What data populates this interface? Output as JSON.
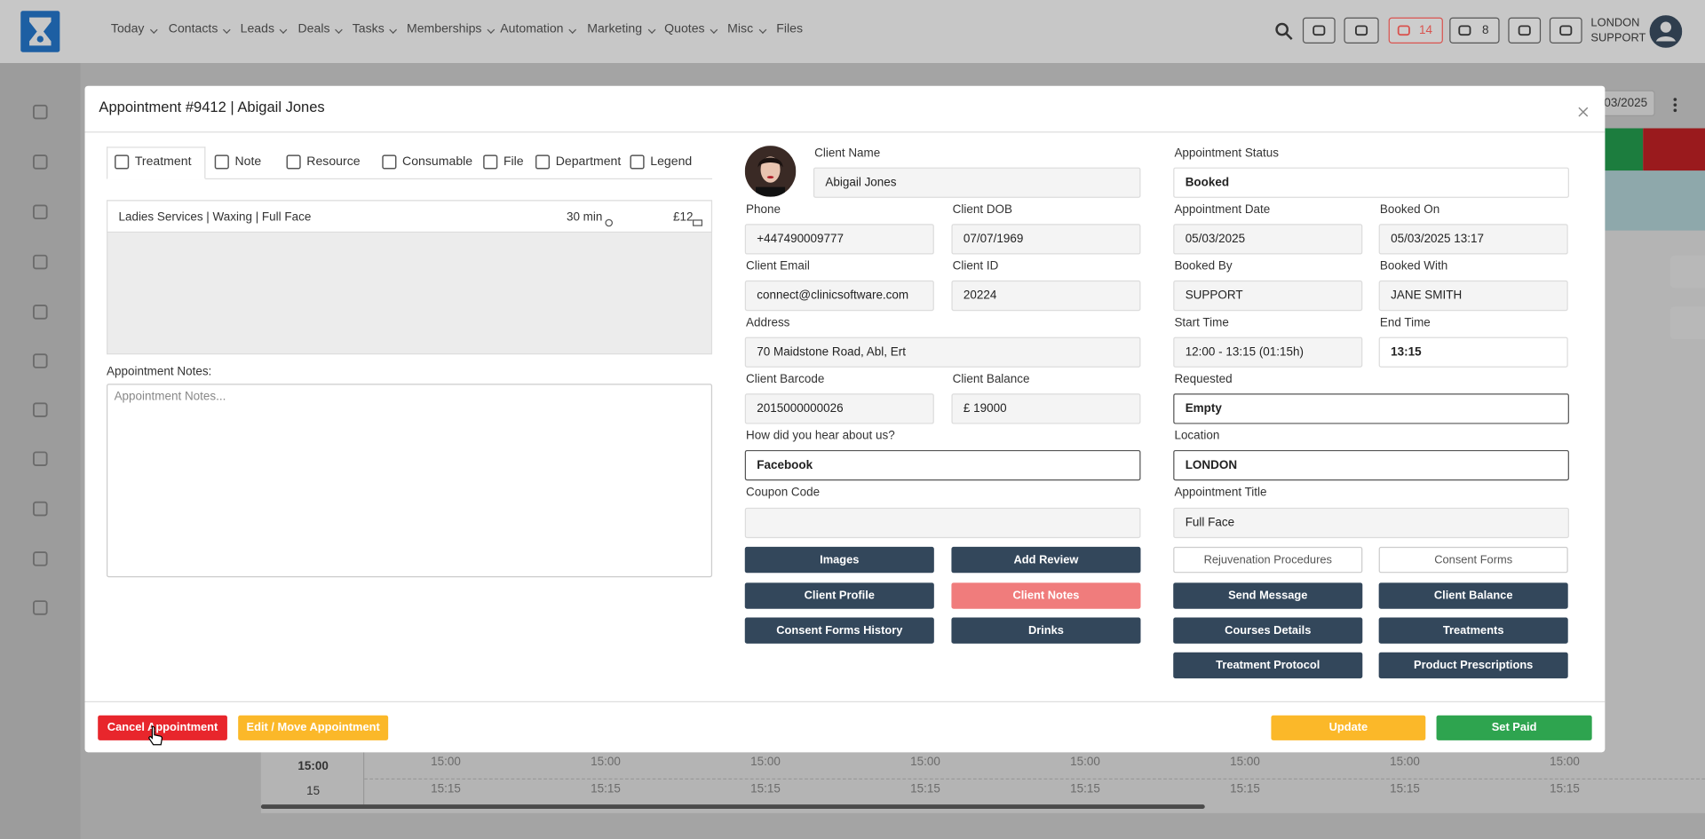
{
  "nav": {
    "items": [
      "Today",
      "Contacts",
      "Leads",
      "Deals",
      "Tasks",
      "Memberships",
      "Automation",
      "Marketing",
      "Quotes",
      "Misc",
      "Files"
    ],
    "chat_count": "14",
    "store_count": "8",
    "user": [
      "LONDON",
      "SUPPORT"
    ]
  },
  "background": {
    "date": "03/2025",
    "time_rows": [
      "15:00",
      "15"
    ],
    "slots_a": [
      "15:00",
      "15:00",
      "15:00",
      "15:00",
      "15:00",
      "15:00",
      "15:00",
      "15:00"
    ],
    "slots_b": [
      "15:15",
      "15:15",
      "15:15",
      "15:15",
      "15:15",
      "15:15",
      "15:15",
      "15:15"
    ]
  },
  "modal": {
    "title": "Appointment #9412 | Abigail Jones",
    "tabs": [
      "Treatment",
      "Note",
      "Resource",
      "Consumable",
      "File",
      "Department",
      "Legend"
    ],
    "treatment": {
      "name": "Ladies Services | Waxing | Full Face",
      "duration": "30 min",
      "price": "£12"
    },
    "notes_label": "Appointment Notes:",
    "notes_placeholder": "Appointment Notes...",
    "fields": [
      {
        "label": "Client Name",
        "value": "Abigail Jones"
      },
      {
        "label": "Appointment Status",
        "value": "Booked"
      },
      {
        "label": "Phone",
        "value": "+447490009777"
      },
      {
        "label": "Client DOB",
        "value": "07/07/1969"
      },
      {
        "label": "Appointment Date",
        "value": "05/03/2025"
      },
      {
        "label": "Booked On",
        "value": "05/03/2025 13:17"
      },
      {
        "label": "Client Email",
        "value": "connect@clinicsoftware.com"
      },
      {
        "label": "Client ID",
        "value": "20224"
      },
      {
        "label": "Booked By",
        "value": "SUPPORT"
      },
      {
        "label": "Booked With",
        "value": "JANE SMITH"
      },
      {
        "label": "Address",
        "value": "70  Maidstone Road, Abl, Ert"
      },
      {
        "label": "Start Time",
        "value": "12:00 - 13:15 (01:15h)"
      },
      {
        "label": "End Time",
        "value": "13:15"
      },
      {
        "label": "Client Barcode",
        "value": "2015000000026"
      },
      {
        "label": "Client Balance",
        "value": "£ 19000"
      },
      {
        "label": "Requested",
        "value": "Empty"
      },
      {
        "label": "How did you hear about us?",
        "value": "Facebook"
      },
      {
        "label": "Location",
        "value": "LONDON"
      },
      {
        "label": "Coupon Code"
      },
      {
        "label": "Appointment Title",
        "value": "Full Face"
      }
    ],
    "buttons": [
      "Images",
      "Add Review",
      "Rejuvenation Procedures",
      "Consent Forms",
      "Client Profile",
      "Client Notes",
      "Send Message",
      "Client Balance",
      "Consent Forms History",
      "Drinks",
      "Courses Details",
      "Treatments",
      "Treatment Protocol",
      "Product Prescriptions"
    ],
    "footer": [
      "Cancel Appointment",
      "Edit / Move Appointment",
      "Update",
      "Set Paid"
    ]
  }
}
